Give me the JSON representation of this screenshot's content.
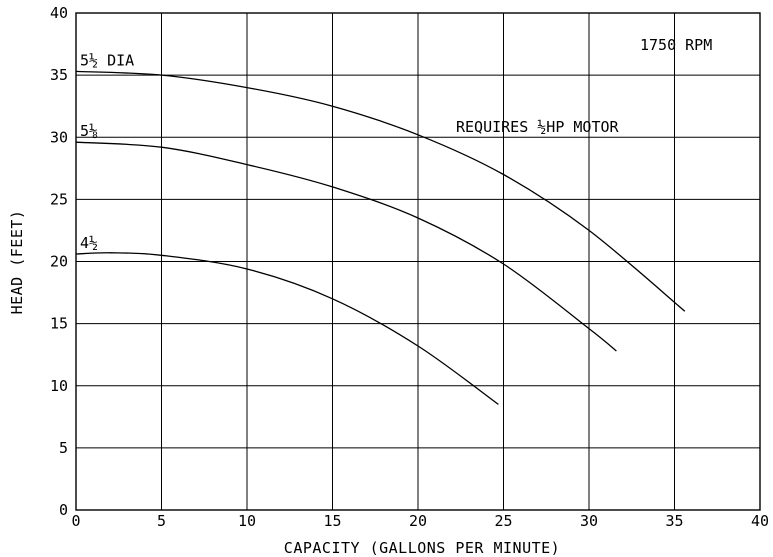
{
  "chart_data": {
    "type": "line",
    "title": "",
    "xlabel": "CAPACITY (GALLONS PER MINUTE)",
    "ylabel": "HEAD (FEET)",
    "xlim": [
      0,
      40
    ],
    "ylim": [
      0,
      40
    ],
    "x_ticks": [
      "0",
      "5",
      "10",
      "15",
      "20",
      "25",
      "30",
      "35",
      "40"
    ],
    "y_ticks": [
      "0",
      "5",
      "10",
      "15",
      "20",
      "25",
      "30",
      "35",
      "40"
    ],
    "grid": true,
    "annotations": {
      "rpm": "1750 RPM",
      "motor": "REQUIRES ½HP MOTOR"
    },
    "series": [
      {
        "name": "5½ DIA",
        "points": [
          [
            0,
            35.3
          ],
          [
            5,
            35.0
          ],
          [
            10,
            34.0
          ],
          [
            15,
            32.5
          ],
          [
            20,
            30.2
          ],
          [
            25,
            27.0
          ],
          [
            30,
            22.5
          ],
          [
            35.6,
            16.0
          ]
        ]
      },
      {
        "name": "5⅛",
        "points": [
          [
            0,
            29.6
          ],
          [
            5,
            29.2
          ],
          [
            10,
            27.8
          ],
          [
            15,
            26.0
          ],
          [
            20,
            23.5
          ],
          [
            25,
            19.8
          ],
          [
            30,
            14.6
          ],
          [
            31.6,
            12.8
          ]
        ]
      },
      {
        "name": "4½",
        "points": [
          [
            0,
            20.6
          ],
          [
            2,
            20.7
          ],
          [
            5,
            20.5
          ],
          [
            10,
            19.4
          ],
          [
            15,
            17.0
          ],
          [
            20,
            13.2
          ],
          [
            24.7,
            8.5
          ]
        ]
      }
    ]
  }
}
